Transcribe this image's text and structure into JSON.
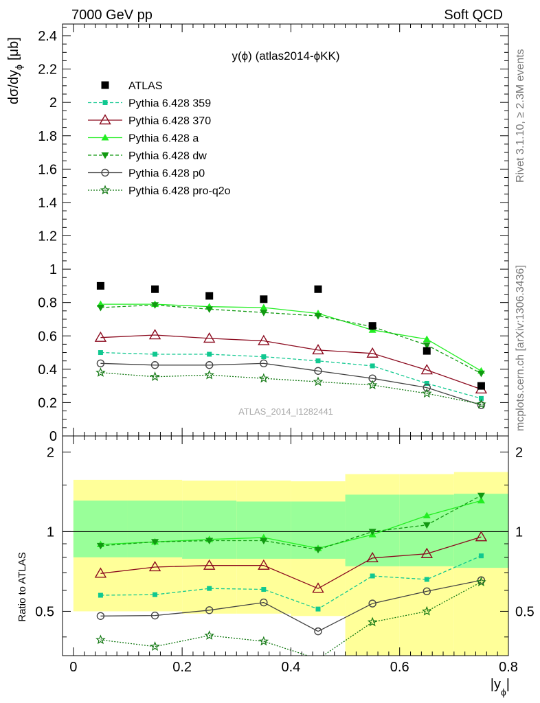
{
  "corner_left": "7000 GeV pp",
  "corner_right": "Soft QCD",
  "plot_title": "y(ϕ) (atlas2014-ϕKK)",
  "ylabel_top": "dσ/dy",
  "ylabel_top_sub": "ϕ",
  "ylabel_top_unit": "[μb]",
  "ylabel_ratio": "Ratio to ATLAS",
  "xlabel": "|y",
  "xlabel_sub": "ϕ",
  "xlabel_end": "|",
  "side_text_top": "Rivet 3.1.10, ≥ 2.3M events",
  "side_text_bottom": "mcplots.cern.ch [arXiv:1306.3436]",
  "watermark": "ATLAS_2014_I1282441",
  "colors": {
    "data": "#000000",
    "p359": "#10c890",
    "p370": "#8b0a1e",
    "pa": "#22ee22",
    "pdw": "#119911",
    "pp0": "#444444",
    "pq2o": "#117711",
    "band_inner": "#99ff99",
    "band_outer": "#ffff99"
  },
  "chart_data": [
    {
      "type": "line",
      "x": [
        0.05,
        0.15,
        0.25,
        0.35,
        0.45,
        0.55,
        0.65,
        0.75
      ],
      "xlim": [
        -0.02,
        0.8
      ],
      "ylim": [
        0,
        2.47
      ],
      "yticks": [
        "0",
        "0.2",
        "0.4",
        "0.6",
        "0.8",
        "1",
        "1.2",
        "1.4",
        "1.6",
        "1.8",
        "2",
        "2.2",
        "2.4"
      ],
      "legend_position": "top-left",
      "series": [
        {
          "name": "ATLAS",
          "key": "data",
          "marker": "square",
          "values": [
            0.9,
            0.88,
            0.84,
            0.82,
            0.88,
            0.66,
            0.51,
            0.3
          ]
        },
        {
          "name": "Pythia 6.428 359",
          "key": "p359",
          "marker": "smallsquare",
          "dash": "dashed",
          "values": [
            0.5,
            0.49,
            0.49,
            0.475,
            0.45,
            0.42,
            0.315,
            0.225
          ]
        },
        {
          "name": "Pythia 6.428 370",
          "key": "p370",
          "marker": "triangle-open",
          "dash": "solid",
          "values": [
            0.59,
            0.605,
            0.585,
            0.57,
            0.515,
            0.495,
            0.395,
            0.28
          ]
        },
        {
          "name": "Pythia 6.428 a",
          "key": "pa",
          "marker": "triangle",
          "dash": "solid",
          "values": [
            0.79,
            0.79,
            0.775,
            0.77,
            0.735,
            0.635,
            0.58,
            0.39
          ]
        },
        {
          "name": "Pythia 6.428 dw",
          "key": "pdw",
          "marker": "triangle-down",
          "dash": "dashed",
          "values": [
            0.77,
            0.785,
            0.76,
            0.74,
            0.72,
            0.655,
            0.545,
            0.375
          ]
        },
        {
          "name": "Pythia 6.428 p0",
          "key": "pp0",
          "marker": "circle-open",
          "dash": "solid",
          "values": [
            0.435,
            0.425,
            0.425,
            0.435,
            0.39,
            0.345,
            0.29,
            0.185
          ]
        },
        {
          "name": "Pythia 6.428 pro-q2o",
          "key": "pq2o",
          "marker": "star",
          "dash": "dotted",
          "values": [
            0.38,
            0.355,
            0.365,
            0.345,
            0.325,
            0.305,
            0.255,
            0.19
          ]
        }
      ]
    },
    {
      "type": "line",
      "xlabel": "|yϕ|",
      "ylabel": "Ratio to ATLAS",
      "x": [
        0.05,
        0.15,
        0.25,
        0.35,
        0.45,
        0.55,
        0.65,
        0.75
      ],
      "xlim": [
        -0.02,
        0.8
      ],
      "xticks": [
        "0",
        "0.2",
        "0.4",
        "0.6",
        "0.8"
      ],
      "ylim": [
        0.34,
        2.3
      ],
      "yticks": [
        "0.5",
        "1",
        "2"
      ],
      "bands": {
        "edges": [
          0.0,
          0.1,
          0.2,
          0.3,
          0.4,
          0.5,
          0.6,
          0.7,
          0.8
        ],
        "inner_low": [
          0.8,
          0.8,
          0.79,
          0.79,
          0.79,
          0.74,
          0.74,
          0.73
        ],
        "inner_high": [
          1.31,
          1.31,
          1.31,
          1.3,
          1.3,
          1.38,
          1.38,
          1.39
        ],
        "outer_low": [
          0.5,
          0.5,
          0.49,
          0.49,
          0.48,
          0.34,
          0.34,
          0.34
        ],
        "outer_high": [
          1.57,
          1.57,
          1.56,
          1.56,
          1.55,
          1.65,
          1.65,
          1.68
        ]
      },
      "series": [
        {
          "name": "Pythia 6.428 359",
          "key": "p359",
          "marker": "smallsquare",
          "dash": "dashed",
          "values": [
            0.575,
            0.578,
            0.61,
            0.605,
            0.51,
            0.68,
            0.66,
            0.81
          ]
        },
        {
          "name": "Pythia 6.428 370",
          "key": "p370",
          "marker": "triangle-open",
          "dash": "solid",
          "values": [
            0.695,
            0.735,
            0.745,
            0.745,
            0.61,
            0.795,
            0.825,
            0.955
          ]
        },
        {
          "name": "Pythia 6.428 a",
          "key": "pa",
          "marker": "triangle",
          "dash": "solid",
          "values": [
            0.895,
            0.915,
            0.935,
            0.95,
            0.865,
            0.975,
            1.15,
            1.31
          ]
        },
        {
          "name": "Pythia 6.428 dw",
          "key": "pdw",
          "marker": "triangle-down",
          "dash": "dashed",
          "values": [
            0.885,
            0.915,
            0.925,
            0.925,
            0.855,
            1.0,
            1.06,
            1.37
          ]
        },
        {
          "name": "Pythia 6.428 p0",
          "key": "pp0",
          "marker": "circle-open",
          "dash": "solid",
          "values": [
            0.48,
            0.482,
            0.505,
            0.54,
            0.42,
            0.535,
            0.595,
            0.655
          ]
        },
        {
          "name": "Pythia 6.428 pro-q2o",
          "key": "pq2o",
          "marker": "star",
          "dash": "dotted",
          "values": [
            0.39,
            0.368,
            0.405,
            0.385,
            0.33,
            0.455,
            0.5,
            0.645
          ]
        }
      ]
    }
  ]
}
